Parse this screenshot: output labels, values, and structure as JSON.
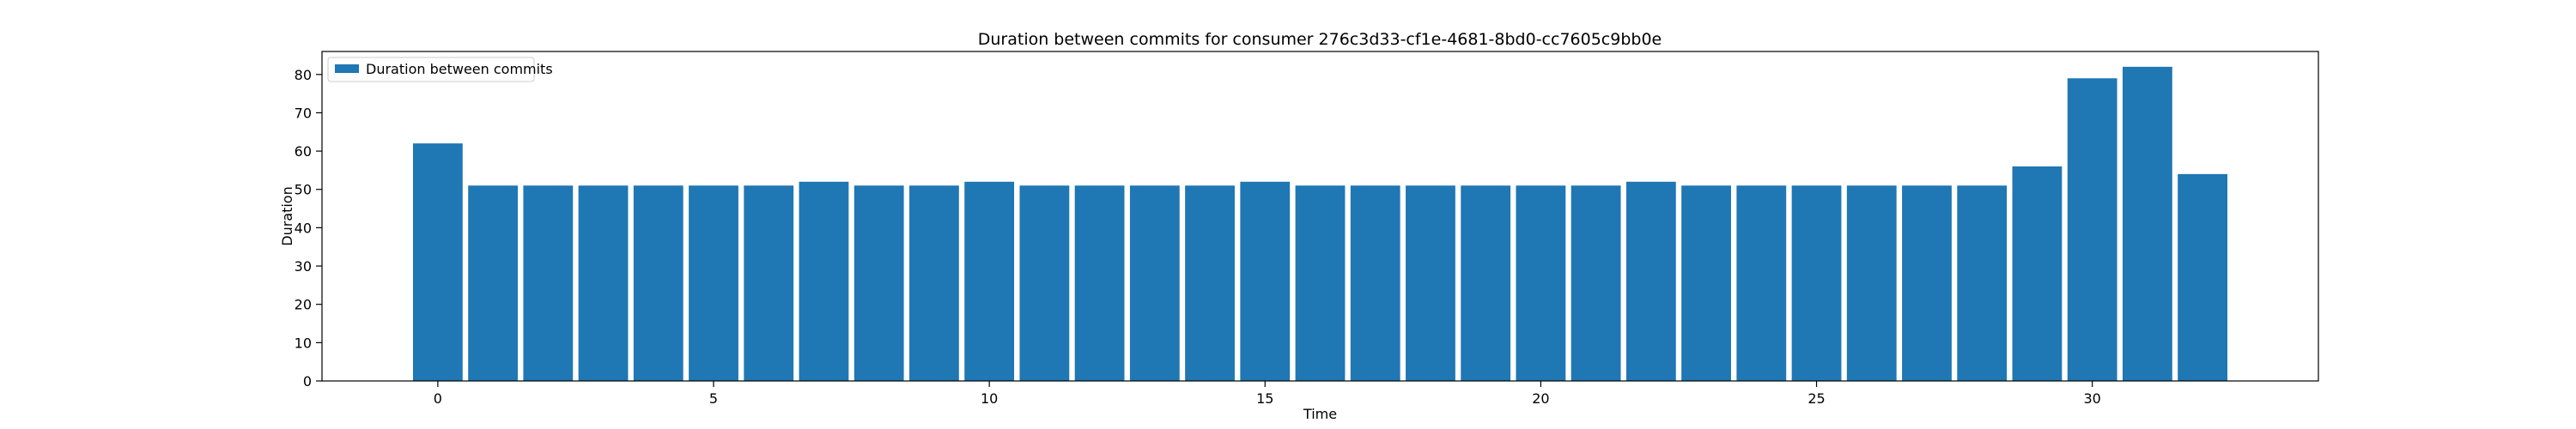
{
  "chart_data": {
    "type": "bar",
    "title": "Duration between commits for consumer 276c3d33-cf1e-4681-8bd0-cc7605c9bb0e",
    "xlabel": "Time",
    "ylabel": "Duration",
    "x": [
      0,
      1,
      2,
      3,
      4,
      5,
      6,
      7,
      8,
      9,
      10,
      11,
      12,
      13,
      14,
      15,
      16,
      17,
      18,
      19,
      20,
      21,
      22,
      23,
      24,
      25,
      26,
      27,
      28,
      29,
      30,
      31,
      32
    ],
    "values": [
      62,
      51,
      51,
      51,
      51,
      51,
      51,
      52,
      51,
      51,
      52,
      51,
      51,
      51,
      51,
      52,
      51,
      51,
      51,
      51,
      51,
      51,
      52,
      51,
      51,
      51,
      51,
      51,
      51,
      56,
      79,
      82,
      54
    ],
    "xlim": [
      -2.1,
      34.1
    ],
    "ylim": [
      0,
      86
    ],
    "xticks": [
      0,
      5,
      10,
      15,
      20,
      25,
      30
    ],
    "yticks": [
      0,
      10,
      20,
      30,
      40,
      50,
      60,
      70,
      80
    ],
    "grid": false,
    "bar_color": "#1f77b4",
    "legend": {
      "placement": "upper-left",
      "entries": [
        {
          "label": "Duration between commits",
          "color": "#1f77b4"
        }
      ]
    }
  }
}
